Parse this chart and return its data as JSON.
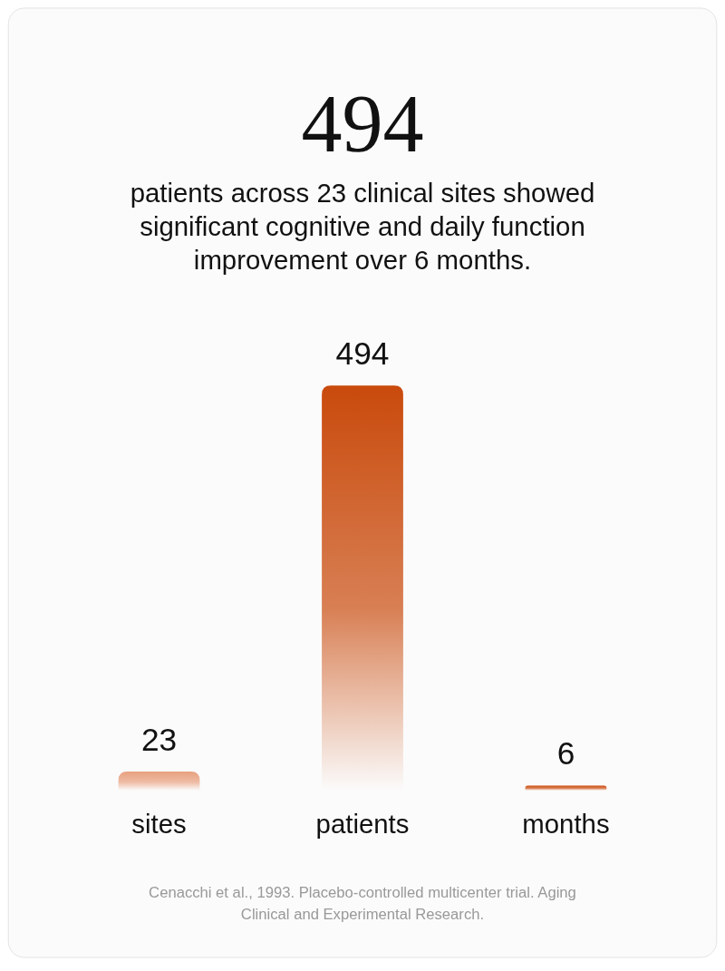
{
  "chart_data": {
    "type": "bar",
    "title": "494",
    "subtitle": "patients across 23 clinical sites showed significant cognitive and daily function improvement over 6 months.",
    "categories": [
      "sites",
      "patients",
      "months"
    ],
    "values": [
      23,
      494,
      6
    ],
    "data_labels": true,
    "colors": [
      "#e8a07e",
      "#c94a0c",
      "#cc4d10"
    ],
    "annotations": [
      "Cenacchi et al., 1993. Placebo-controlled multicenter trial. Aging Clinical and Experimental Research."
    ]
  }
}
